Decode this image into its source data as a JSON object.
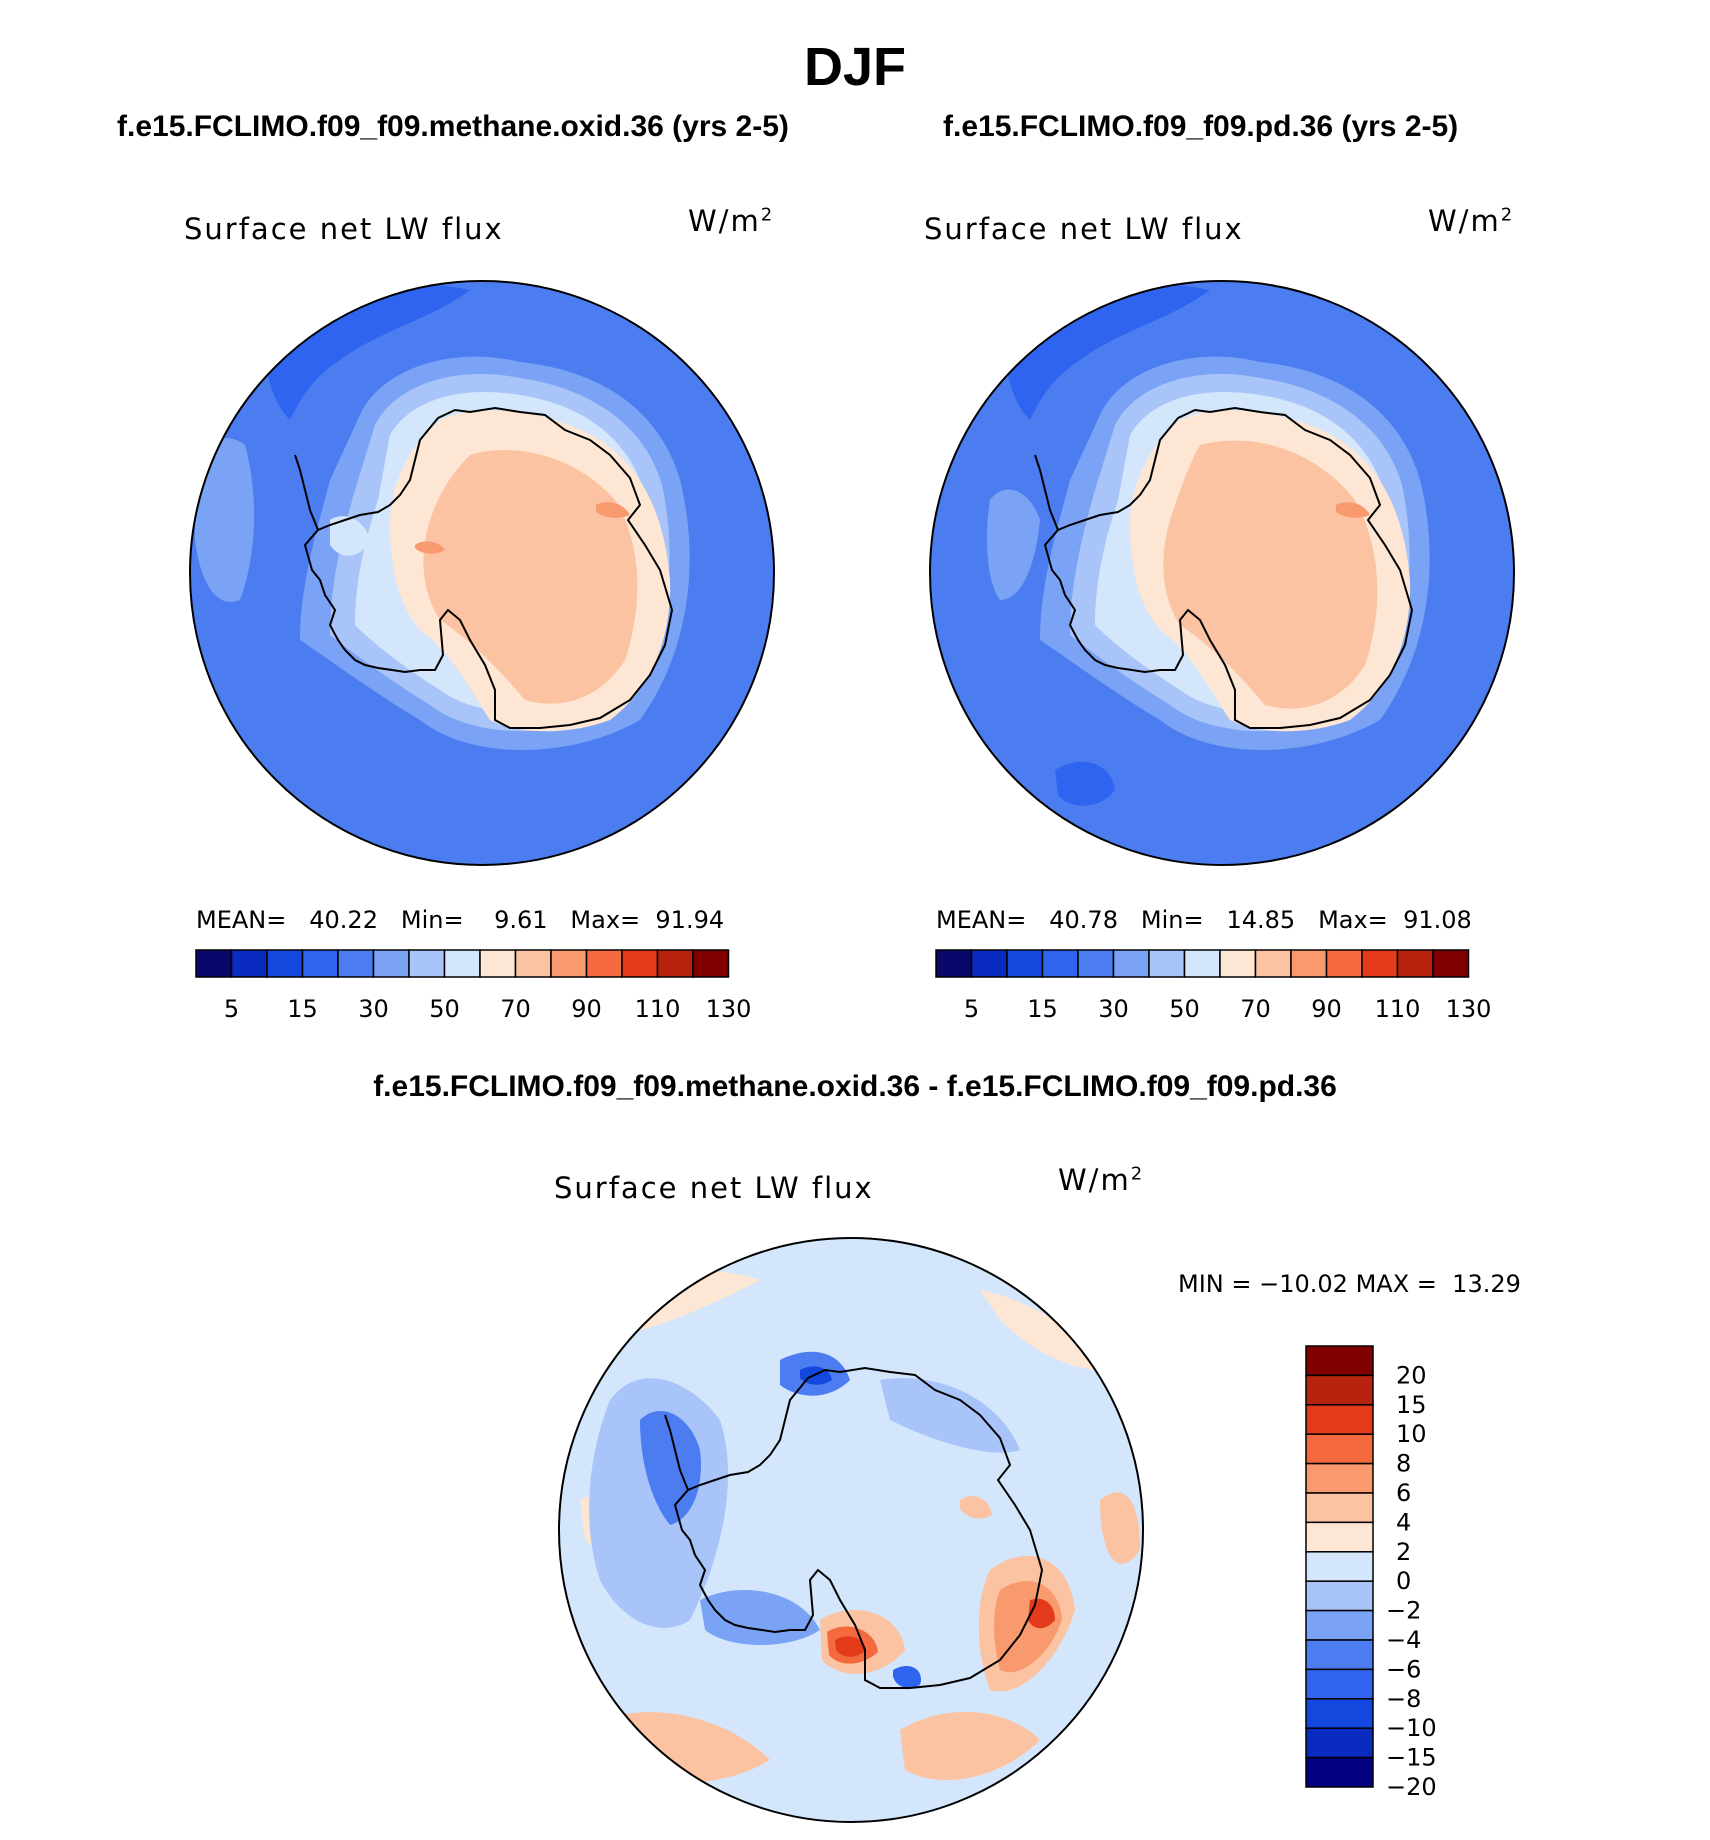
{
  "figure_title": "DJF",
  "panels": [
    {
      "run_title": "f.e15.FCLIMO.f09_f09.methane.oxid.36 (yrs 2-5)",
      "variable": "Surface net LW flux",
      "units": "W/m",
      "units_exponent": "2",
      "stats": {
        "mean_label": "MEAN=",
        "mean": "40.22",
        "min_label": "Min=",
        "min": "9.61",
        "max_label": "Max=",
        "max": "91.94"
      }
    },
    {
      "run_title": "f.e15.FCLIMO.f09_f09.pd.36 (yrs 2-5)",
      "variable": "Surface net LW flux",
      "units": "W/m",
      "units_exponent": "2",
      "stats": {
        "mean_label": "MEAN=",
        "mean": "40.78",
        "min_label": "Min=",
        "min": "14.85",
        "max_label": "Max=",
        "max": "91.08"
      }
    },
    {
      "run_title": "f.e15.FCLIMO.f09_f09.methane.oxid.36 - f.e15.FCLIMO.f09_f09.pd.36",
      "variable": "Surface net LW flux",
      "units": "W/m",
      "units_exponent": "2",
      "stats": {
        "min_label": "MIN =",
        "min": "−10.02",
        "max_label": "MAX =",
        "max": "13.29"
      }
    }
  ],
  "colors": {
    "abs_scale": [
      "#08086b",
      "#0a2bbf",
      "#1248dd",
      "#2e64ef",
      "#4c7df0",
      "#7aa3f6",
      "#a8c4f8",
      "#d3e6fb",
      "#fde6d4",
      "#fbc3a2",
      "#f89a6d",
      "#f46a3e",
      "#e23a1a",
      "#b8230f",
      "#800000"
    ],
    "diff_scale": [
      "#000080",
      "#0a2bbf",
      "#1248dd",
      "#2e64ef",
      "#4c7df0",
      "#7aa3f6",
      "#a8c4f8",
      "#d3e6fb",
      "#fde6d4",
      "#fbc3a2",
      "#f89a6d",
      "#f46a3e",
      "#e23a1a",
      "#b8230f",
      "#800000"
    ]
  },
  "chart_data": [
    {
      "type": "contour_map",
      "projection": "south polar stereographic",
      "title": "f.e15.FCLIMO.f09_f09.methane.oxid.36 (yrs 2-5)",
      "variable": "Surface net LW flux",
      "units": "W/m2",
      "mean": 40.22,
      "min": 9.61,
      "max": 91.94,
      "colorbar_levels": [
        5,
        10,
        15,
        20,
        30,
        40,
        50,
        60,
        70,
        80,
        90,
        100,
        110,
        120,
        130
      ],
      "colorbar_tick_labels": [
        "5",
        "15",
        "30",
        "50",
        "70",
        "90",
        "110",
        "130"
      ]
    },
    {
      "type": "contour_map",
      "projection": "south polar stereographic",
      "title": "f.e15.FCLIMO.f09_f09.pd.36 (yrs 2-5)",
      "variable": "Surface net LW flux",
      "units": "W/m2",
      "mean": 40.78,
      "min": 14.85,
      "max": 91.08,
      "colorbar_levels": [
        5,
        10,
        15,
        20,
        30,
        40,
        50,
        60,
        70,
        80,
        90,
        100,
        110,
        120,
        130
      ],
      "colorbar_tick_labels": [
        "5",
        "15",
        "30",
        "50",
        "70",
        "90",
        "110",
        "130"
      ]
    },
    {
      "type": "contour_map",
      "projection": "south polar stereographic",
      "title": "f.e15.FCLIMO.f09_f09.methane.oxid.36 - f.e15.FCLIMO.f09_f09.pd.36",
      "variable": "Surface net LW flux",
      "units": "W/m2",
      "min": -10.02,
      "max": 13.29,
      "colorbar_levels": [
        -20,
        -15,
        -10,
        -8,
        -6,
        -4,
        -2,
        0,
        2,
        4,
        6,
        8,
        10,
        15,
        20
      ],
      "colorbar_tick_labels": [
        "20",
        "15",
        "10",
        "8",
        "6",
        "4",
        "2",
        "0",
        "−2",
        "−4",
        "−6",
        "−8",
        "−10",
        "−15",
        "−20"
      ]
    }
  ]
}
